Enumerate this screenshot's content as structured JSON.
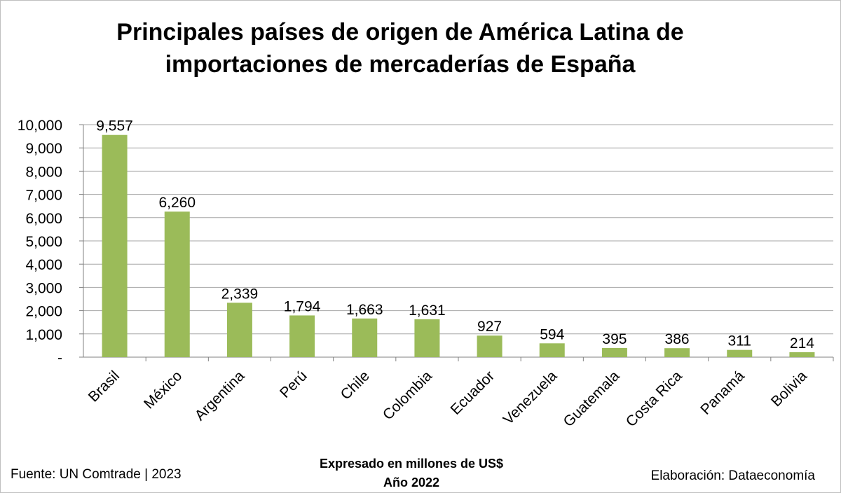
{
  "chart_data": {
    "type": "bar",
    "title_line1": "Principales países de origen de América Latina de",
    "title_line2": "importaciones de mercaderías de España",
    "categories": [
      "Brasil",
      "México",
      "Argentina",
      "Perú",
      "Chile",
      "Colombia",
      "Ecuador",
      "Venezuela",
      "Guatemala",
      "Costa Rica",
      "Panamá",
      "Bolivia"
    ],
    "values": [
      9557,
      6260,
      2339,
      1794,
      1663,
      1631,
      927,
      594,
      395,
      386,
      311,
      214
    ],
    "value_labels": [
      "9,557",
      "6,260",
      "2,339",
      "1,794",
      "1,663",
      "1,631",
      "927",
      "594",
      "395",
      "386",
      "311",
      "214"
    ],
    "y_ticks": [
      0,
      1000,
      2000,
      3000,
      4000,
      5000,
      6000,
      7000,
      8000,
      9000,
      10000
    ],
    "y_tick_labels": [
      "-",
      "1,000",
      "2,000",
      "3,000",
      "4,000",
      "5,000",
      "6,000",
      "7,000",
      "8,000",
      "9,000",
      "10,000"
    ],
    "ylim": [
      0,
      10000
    ],
    "grid": true,
    "bar_color": "#9bbb59",
    "xlabel": "",
    "ylabel": ""
  },
  "footer": {
    "source": "Fuente: UN Comtrade | 2023",
    "note_line1": "Expresado en millones de US$",
    "note_line2": "Año 2022",
    "credit": "Elaboración: Dataeconomía"
  }
}
